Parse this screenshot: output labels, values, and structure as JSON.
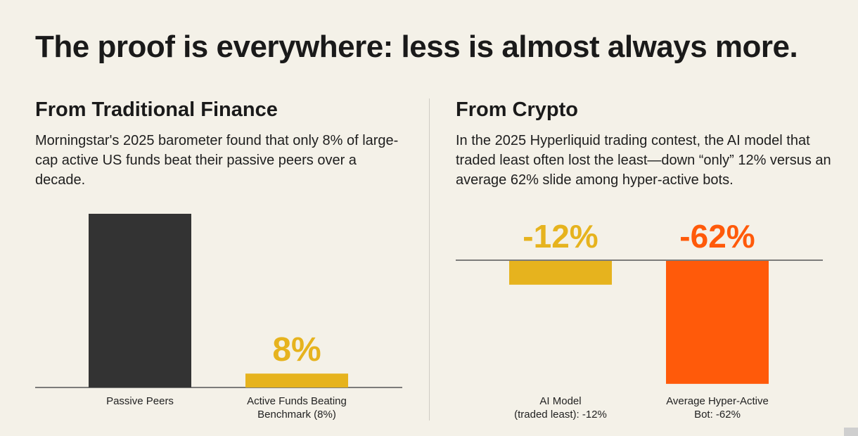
{
  "title": "The proof is everywhere: less is almost always more.",
  "left": {
    "heading": "From Traditional Finance",
    "body": "Morningstar's 2025 barometer found that only 8% of large-cap active US funds beat their passive peers over a decade."
  },
  "right": {
    "heading": "From Crypto",
    "body": "In the 2025 Hyperliquid trading contest, the AI model that traded least often lost the least—down “only” 12% versus an average 62% slide among hyper-active bots."
  },
  "colors": {
    "dark": "#333333",
    "gold": "#e6b31e",
    "orange": "#ff5a0a",
    "axis": "#555555"
  },
  "chart_data": [
    {
      "type": "bar",
      "categories": [
        "Passive Peers",
        "Active Funds Beating Benchmark (8%)"
      ],
      "category_lines": [
        [
          "Passive Peers"
        ],
        [
          "Active Funds Beating",
          "Benchmark (8%)"
        ]
      ],
      "values": [
        100,
        8
      ],
      "data_labels": [
        "",
        "8%"
      ],
      "colors": [
        "#333333",
        "#e6b31e"
      ],
      "ylim": [
        0,
        100
      ],
      "grid": false
    },
    {
      "type": "bar",
      "categories": [
        "AI Model (traded least): -12%",
        "Average Hyper-Active Bot: -62%"
      ],
      "category_lines": [
        [
          "AI Model",
          "(traded least): -12%"
        ],
        [
          "Average Hyper-Active",
          "Bot: -62%"
        ]
      ],
      "values": [
        -12,
        -62
      ],
      "data_labels": [
        "-12%",
        "-62%"
      ],
      "colors": [
        "#e6b31e",
        "#ff5a0a"
      ],
      "ylim": [
        -100,
        0
      ],
      "grid": false
    }
  ]
}
